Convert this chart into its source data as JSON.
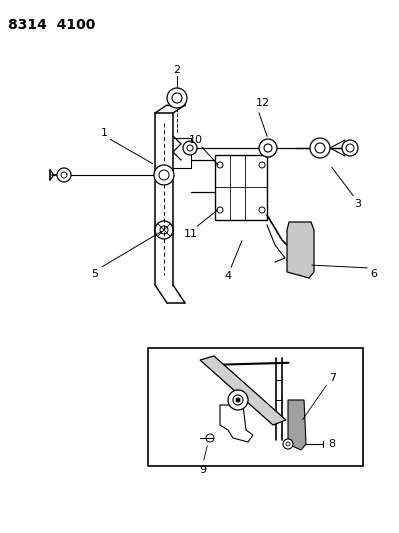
{
  "title": "8314  4100",
  "bg_color": "#ffffff",
  "line_color": "#000000",
  "title_fontsize": 10,
  "label_fontsize": 7.5,
  "figsize": [
    3.99,
    5.33
  ],
  "dpi": 100
}
